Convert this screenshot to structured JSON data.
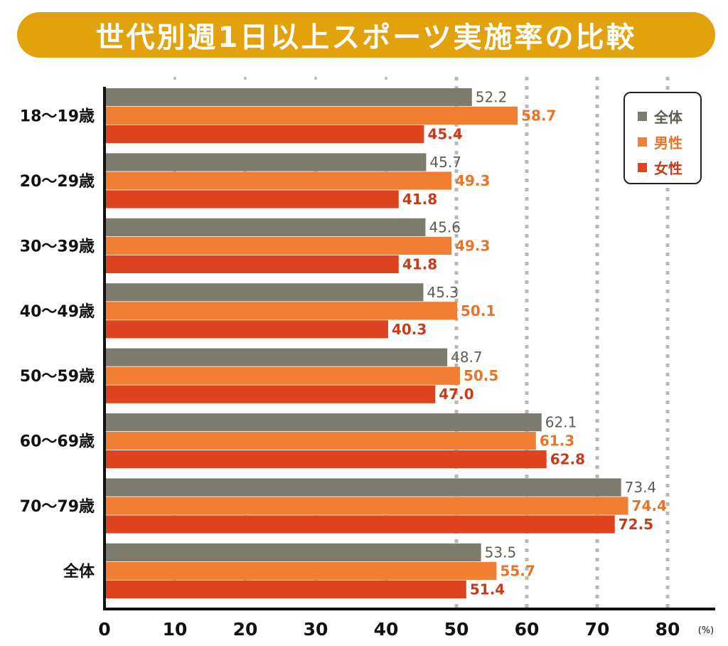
{
  "title": "世代別週1日以上スポーツ実施率の比較",
  "chart_data": {
    "type": "bar",
    "orientation": "horizontal",
    "title": "世代別週1日以上スポーツ実施率の比較",
    "unit": "(%)",
    "categories": [
      "18〜19歳",
      "20〜29歳",
      "30〜39歳",
      "40〜49歳",
      "50〜59歳",
      "60〜69歳",
      "70〜79歳",
      "全体"
    ],
    "series": [
      {
        "name": "全体",
        "color": "#7d7b6e",
        "label_color": "#5f5d52",
        "values": [
          52.2,
          45.7,
          45.6,
          45.3,
          48.7,
          62.1,
          73.4,
          53.5
        ]
      },
      {
        "name": "男性",
        "color": "#f07f33",
        "label_color": "#e8742a",
        "values": [
          58.7,
          49.3,
          49.3,
          50.1,
          50.5,
          61.3,
          74.4,
          55.7
        ]
      },
      {
        "name": "女性",
        "color": "#df4420",
        "label_color": "#c93a1a",
        "values": [
          45.4,
          41.8,
          41.8,
          40.3,
          47.0,
          62.8,
          72.5,
          51.4
        ]
      }
    ],
    "x_ticks": [
      "0",
      "10",
      "20",
      "30",
      "40",
      "50",
      "60",
      "70",
      "80"
    ],
    "xlim": [
      0,
      80
    ],
    "grid": true,
    "legend_position": "top-right",
    "value_labels": [
      "52.2",
      "58.7",
      "45.4",
      "45.7",
      "49.3",
      "41.8",
      "45.6",
      "49.3",
      "41.8",
      "45.3",
      "50.1",
      "40.3",
      "48.7",
      "50.5",
      "47.0",
      "62.1",
      "61.3",
      "62.8",
      "73.4",
      "74.4",
      "72.5",
      "53.5",
      "55.7",
      "51.4"
    ]
  }
}
